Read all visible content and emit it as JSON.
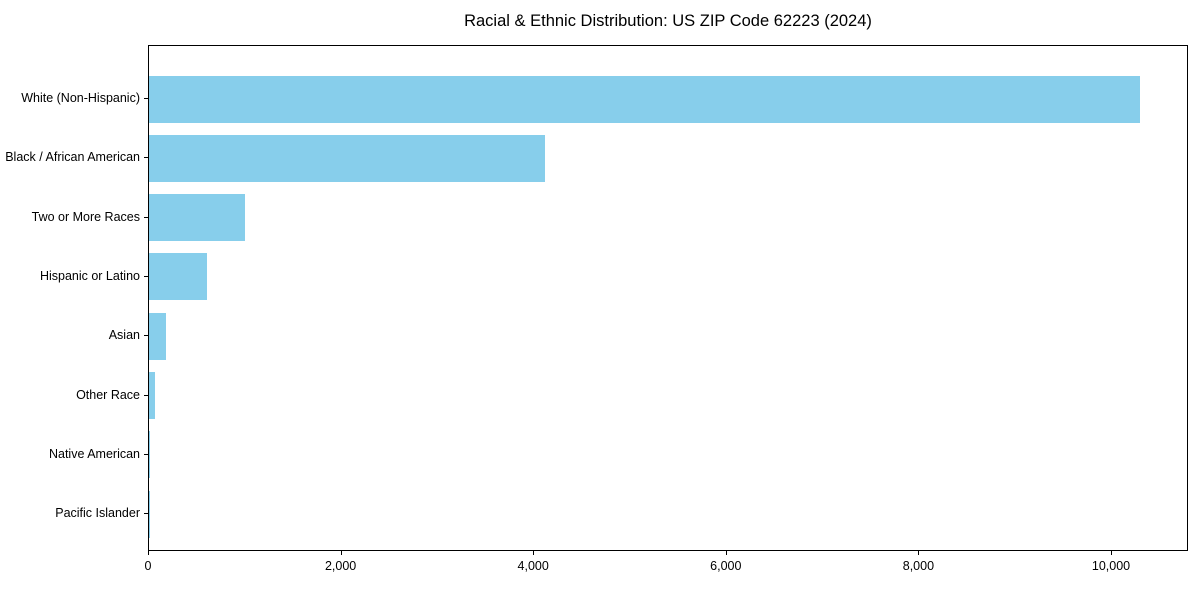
{
  "chart_data": {
    "type": "bar",
    "orientation": "horizontal",
    "title": "Racial & Ethnic Distribution: US ZIP Code 62223 (2024)",
    "categories": [
      "White (Non-Hispanic)",
      "Black / African American",
      "Two or More Races",
      "Hispanic or Latino",
      "Asian",
      "Other Race",
      "Native American",
      "Pacific Islander"
    ],
    "values": [
      10290,
      4110,
      1000,
      605,
      180,
      60,
      10,
      5
    ],
    "xlabel": "",
    "ylabel": "",
    "xlim": [
      0,
      10800
    ],
    "x_ticks": [
      0,
      2000,
      4000,
      6000,
      8000,
      10000
    ],
    "x_tick_labels": [
      "0",
      "2,000",
      "4,000",
      "6,000",
      "8,000",
      "10,000"
    ],
    "bar_color": "#87ceeb",
    "grid": false,
    "legend": "none"
  }
}
